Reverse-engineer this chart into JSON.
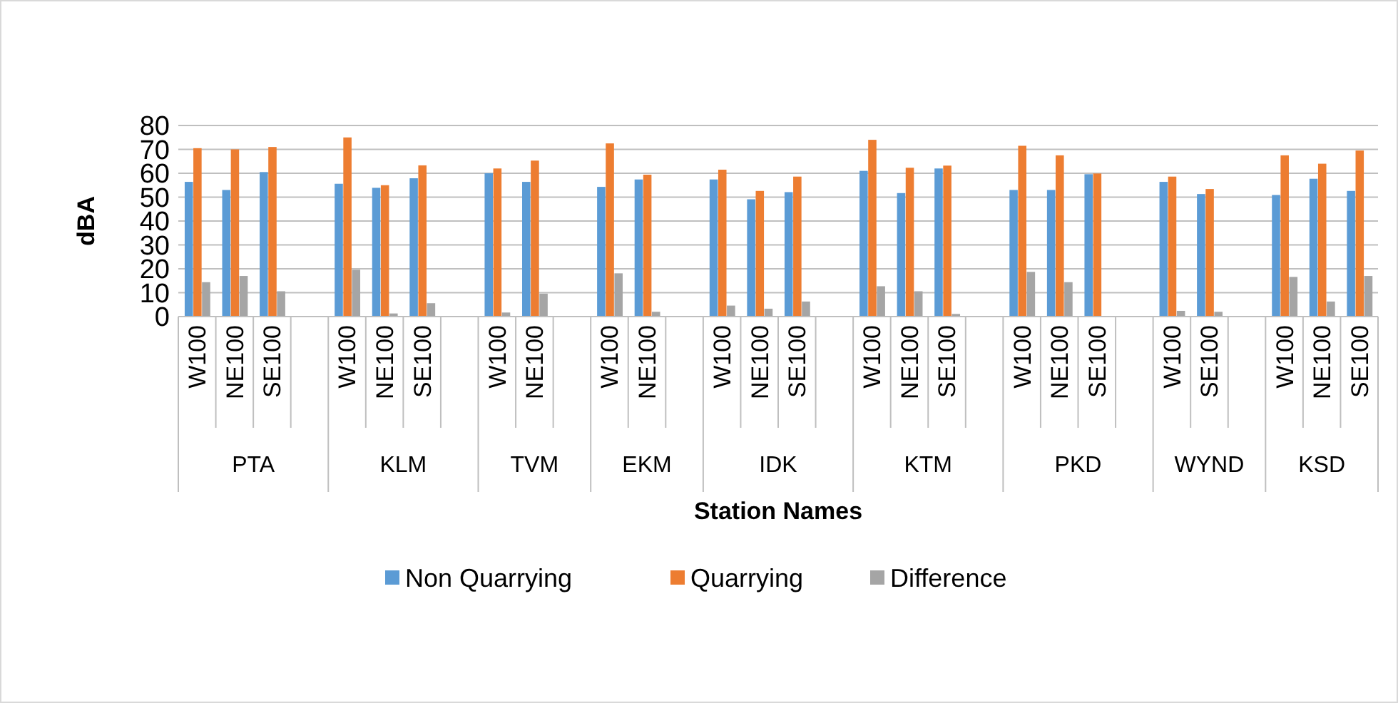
{
  "chart_data": {
    "type": "bar",
    "ylabel": "dBA",
    "xlabel": "Station Names",
    "categories": [
      "W100",
      "NE100",
      "SE100",
      null,
      "W100",
      "NE100",
      "SE100",
      null,
      "W100",
      "NE100",
      null,
      "W100",
      "NE100",
      null,
      "W100",
      "NE100",
      "SE100",
      null,
      "W100",
      "NE100",
      "SE100",
      null,
      "W100",
      "NE100",
      "SE100",
      null,
      "W100",
      "SE100",
      null,
      "W100",
      "NE100",
      "SE100"
    ],
    "annotations": [
      "PTA",
      "KLM",
      "TVM",
      "EKM",
      "IDK",
      "KTM",
      "PKD",
      "WYND",
      "KSD"
    ],
    "series": [
      {
        "name": "Non Quarrying",
        "color": "#5b9bd5",
        "values": [
          56.4,
          53,
          60.5,
          null,
          55.6,
          53.9,
          57.9,
          null,
          60,
          56.4,
          null,
          54.3,
          57.4,
          null,
          57.4,
          49.1,
          52.1,
          null,
          61,
          51.7,
          62,
          null,
          53,
          53,
          59.6,
          null,
          56.4,
          51.3,
          null,
          50.9,
          57.7,
          52.6
        ]
      },
      {
        "name": "Quarrying",
        "color": "#ed7d31",
        "values": [
          70.5,
          70,
          71,
          null,
          75,
          55,
          63.3,
          null,
          62,
          65.3,
          null,
          72.5,
          59.4,
          null,
          61.5,
          52.6,
          58.6,
          null,
          74,
          62.3,
          63.2,
          null,
          71.5,
          67.5,
          59.9,
          null,
          58.6,
          53.4,
          null,
          67.5,
          64,
          69.5
        ]
      },
      {
        "name": "Difference",
        "color": "#a5a5a5",
        "values": [
          14.4,
          17,
          10.6,
          null,
          19.6,
          1.3,
          5.6,
          null,
          1.7,
          9.6,
          null,
          18.1,
          2,
          null,
          4.6,
          3.3,
          6.3,
          null,
          12.7,
          10.6,
          1.1,
          null,
          18.7,
          14.4,
          0.3,
          null,
          2.4,
          2,
          null,
          16.6,
          6.3,
          17
        ]
      }
    ],
    "ylim": [
      0,
      80
    ],
    "yticks": [
      0,
      10,
      20,
      30,
      40,
      50,
      60,
      70,
      80
    ],
    "grid": "y",
    "legend": "bottom"
  }
}
